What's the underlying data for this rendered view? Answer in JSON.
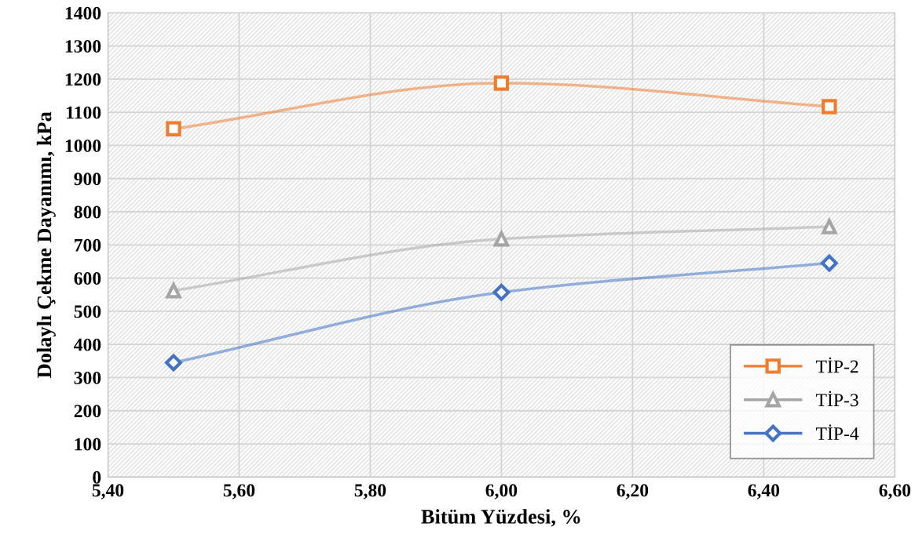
{
  "chart_data": {
    "type": "line",
    "xlabel": "Bitüm Yüzdesi, %",
    "ylabel": "Dolaylı Çekme Dayanımı, kPa",
    "x": [
      5.5,
      6.0,
      6.5
    ],
    "series": [
      {
        "name": "TİP-2",
        "color": "#ed7d31",
        "marker": "square",
        "values": [
          1050,
          1188,
          1117
        ]
      },
      {
        "name": "TİP-3",
        "color": "#a5a5a5",
        "marker": "triangle",
        "values": [
          562,
          718,
          755
        ]
      },
      {
        "name": "TİP-4",
        "color": "#4472c4",
        "marker": "diamond",
        "values": [
          345,
          557,
          645
        ]
      }
    ],
    "xlim": [
      5.4,
      6.6
    ],
    "xticks": [
      {
        "value": 5.4,
        "label": "5,40"
      },
      {
        "value": 5.6,
        "label": "5,60"
      },
      {
        "value": 5.8,
        "label": "5,80"
      },
      {
        "value": 6.0,
        "label": "6,00"
      },
      {
        "value": 6.2,
        "label": "6,20"
      },
      {
        "value": 6.4,
        "label": "6,40"
      },
      {
        "value": 6.6,
        "label": "6,60"
      }
    ],
    "ylim": [
      0,
      1400
    ],
    "yticks": [
      0,
      100,
      200,
      300,
      400,
      500,
      600,
      700,
      800,
      900,
      1000,
      1100,
      1200,
      1300,
      1400
    ],
    "grid": true,
    "legend": "bottom right",
    "line_style": "solid"
  }
}
